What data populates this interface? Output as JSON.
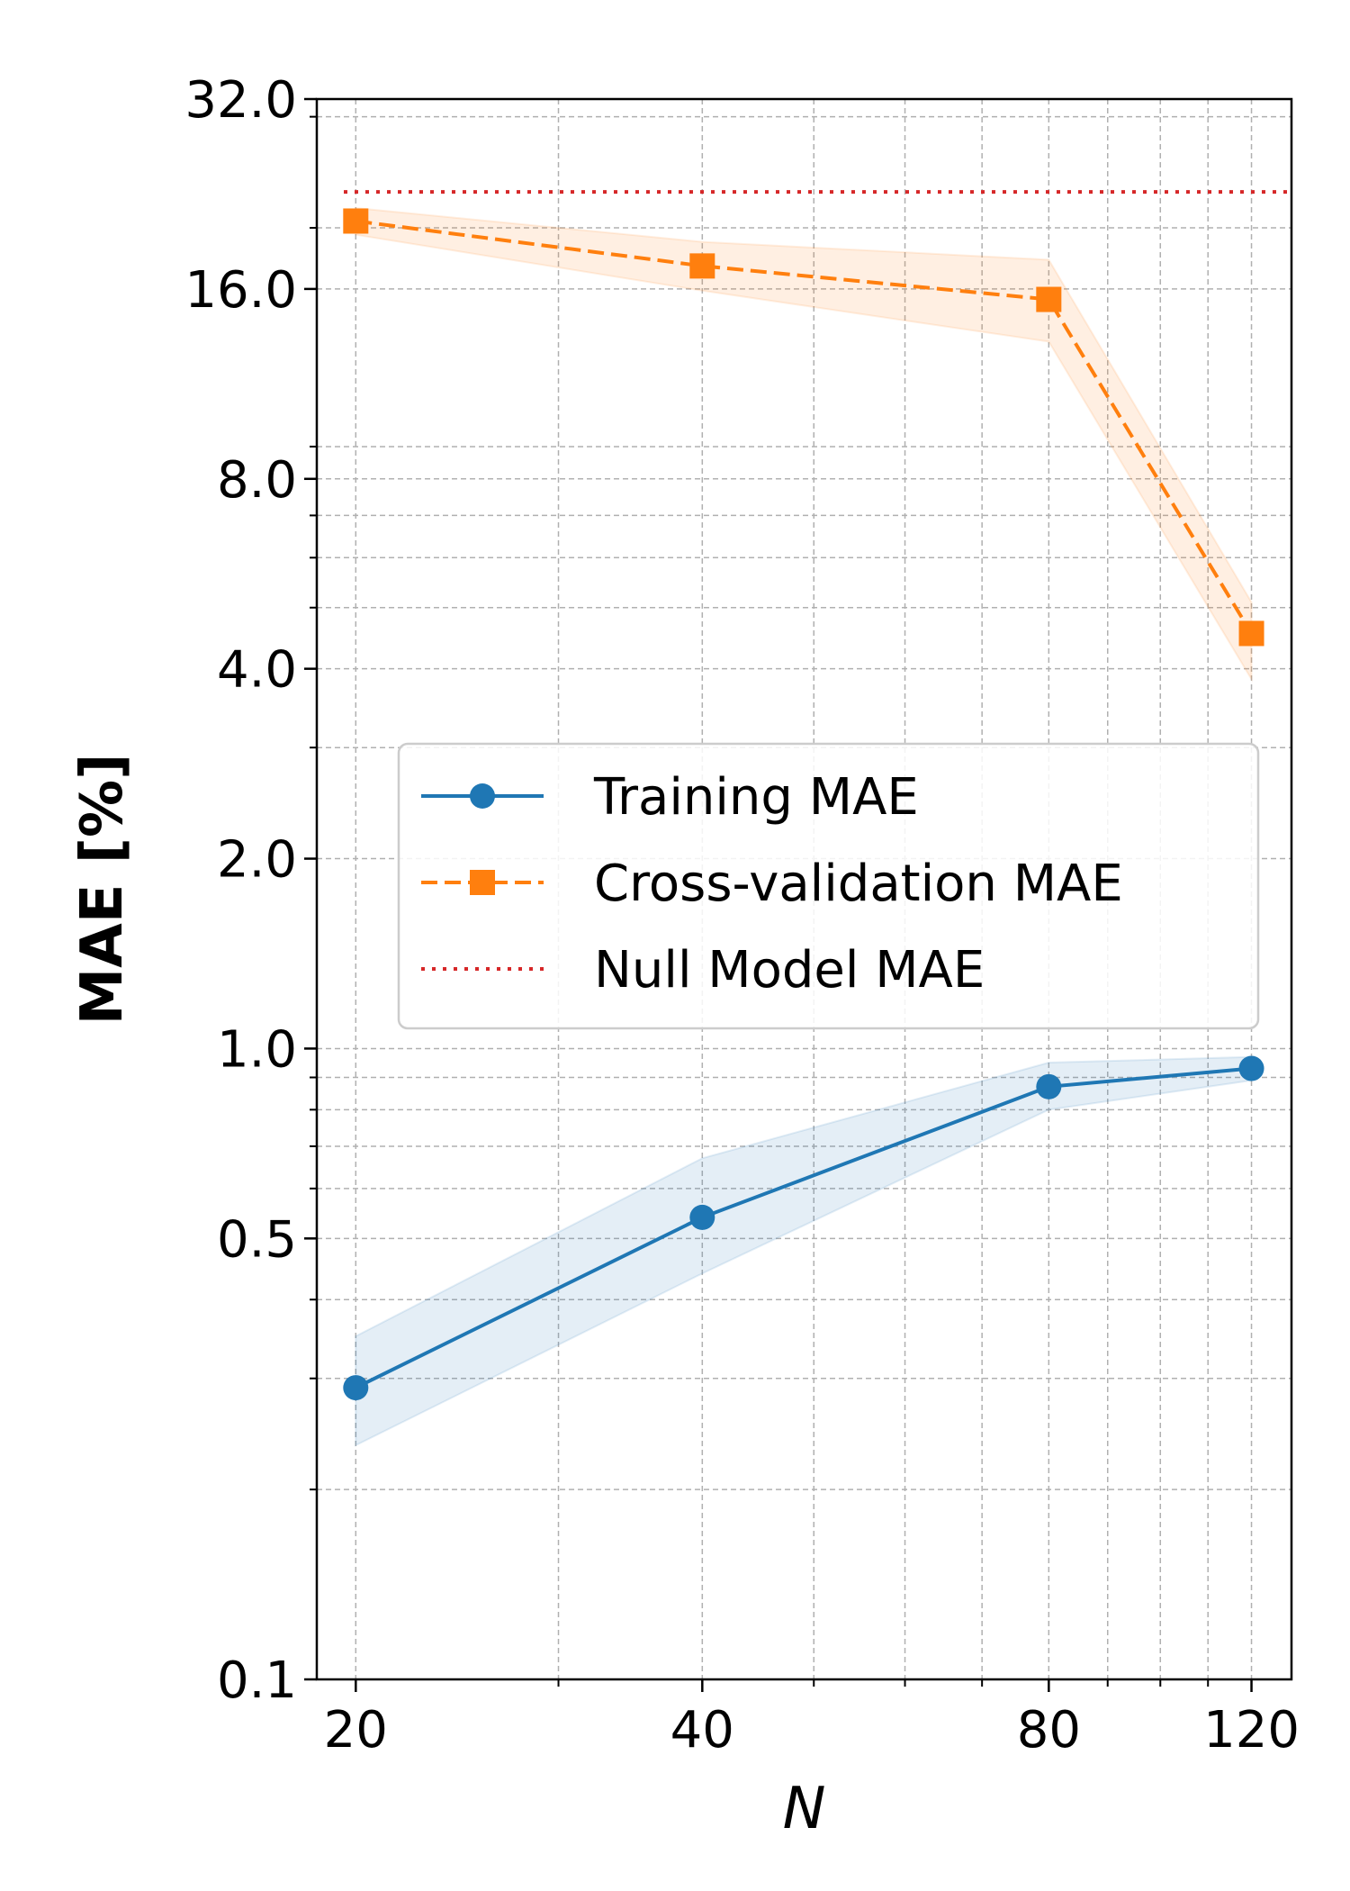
{
  "chart_data": {
    "type": "line",
    "xlabel": "N",
    "ylabel": "MAE [%]",
    "x_scale": "log",
    "y_scale": "log",
    "xlim": [
      18.5,
      130
    ],
    "ylim": [
      0.1,
      32.0
    ],
    "x_ticks": [
      20,
      40,
      80,
      120
    ],
    "x_tick_labels": [
      "20",
      "40",
      "80",
      "120"
    ],
    "y_ticks": [
      0.1,
      0.5,
      1.0,
      2.0,
      4.0,
      8.0,
      16.0,
      32.0
    ],
    "y_tick_labels": [
      "0.1",
      "0.5",
      "1.0",
      "2.0",
      "4.0",
      "8.0",
      "16.0",
      "32.0"
    ],
    "grid": true,
    "legend_position": "center-right",
    "series": [
      {
        "name": "Training MAE",
        "color": "#1f77b4",
        "line_style": "solid",
        "marker": "circle",
        "x": [
          20,
          40,
          80,
          120
        ],
        "y": [
          0.29,
          0.54,
          0.87,
          0.93
        ],
        "band_low": [
          0.235,
          0.44,
          0.8,
          0.89
        ],
        "band_high": [
          0.35,
          0.67,
          0.95,
          0.97
        ]
      },
      {
        "name": "Cross-validation MAE",
        "color": "#ff7f0e",
        "line_style": "dashed",
        "marker": "square",
        "x": [
          20,
          40,
          80,
          120
        ],
        "y": [
          20.5,
          17.4,
          15.4,
          4.55
        ],
        "band_low": [
          19.5,
          15.9,
          13.2,
          3.85
        ],
        "band_high": [
          21.5,
          19.0,
          17.8,
          5.1
        ]
      },
      {
        "name": "Null Model MAE",
        "color": "#d62728",
        "line_style": "dotted",
        "constant_y": 22.8
      }
    ]
  }
}
